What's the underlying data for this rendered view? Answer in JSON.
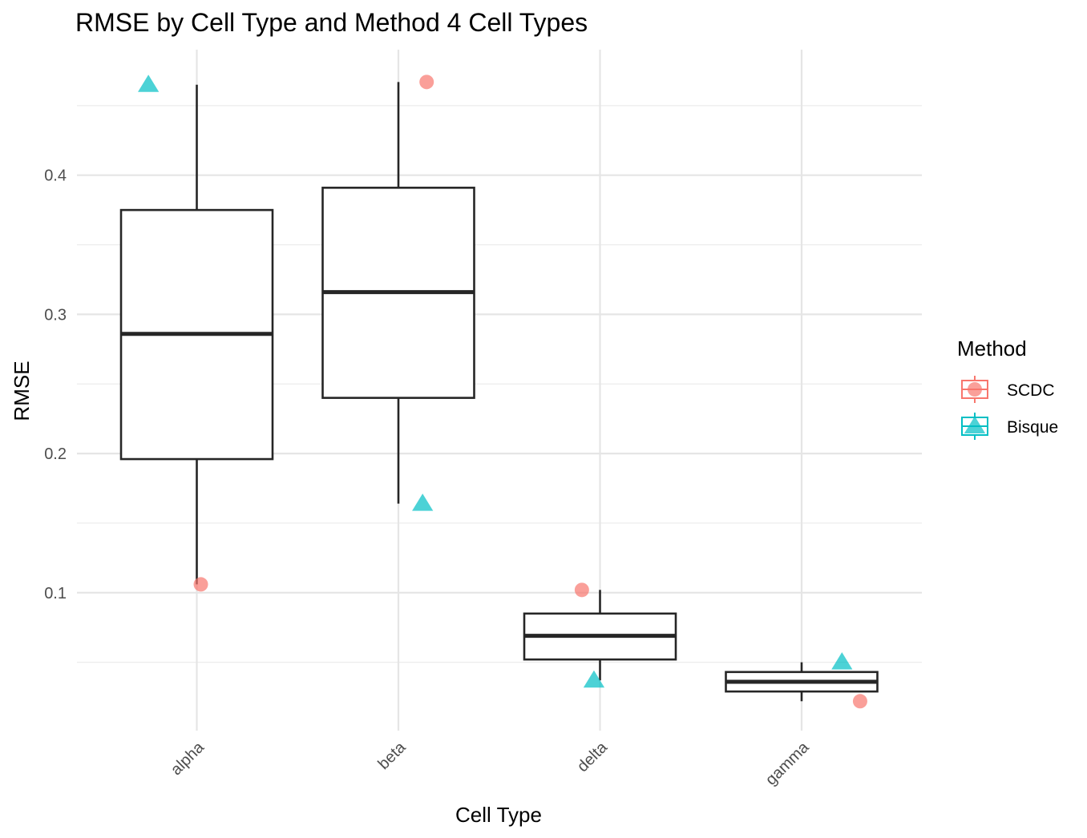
{
  "chart_data": {
    "type": "boxplot",
    "title": "RMSE by Cell Type and Method 4 Cell Types",
    "xlabel": "Cell Type",
    "ylabel": "RMSE",
    "categories": [
      "alpha",
      "beta",
      "delta",
      "gamma"
    ],
    "ylim": [
      0.0,
      0.49
    ],
    "yticks": [
      0.1,
      0.2,
      0.3,
      0.4
    ],
    "ytick_labels": [
      "0.1",
      "0.2",
      "0.3",
      "0.4"
    ],
    "grid": true,
    "legend": {
      "title": "Method",
      "placement": "right",
      "entries": [
        "SCDC",
        "Bisque"
      ]
    },
    "boxes": [
      {
        "category": "alpha",
        "whisker_low": 0.106,
        "q1": 0.196,
        "median": 0.286,
        "q3": 0.375,
        "whisker_high": 0.465
      },
      {
        "category": "beta",
        "whisker_low": 0.164,
        "q1": 0.24,
        "median": 0.316,
        "q3": 0.391,
        "whisker_high": 0.467
      },
      {
        "category": "delta",
        "whisker_low": 0.037,
        "q1": 0.052,
        "median": 0.069,
        "q3": 0.085,
        "whisker_high": 0.102
      },
      {
        "category": "gamma",
        "whisker_low": 0.022,
        "q1": 0.029,
        "median": 0.036,
        "q3": 0.043,
        "whisker_high": 0.05
      }
    ],
    "series": [
      {
        "name": "SCDC",
        "color": "#F8766D",
        "marker": "circle",
        "points": [
          {
            "category": "alpha",
            "y": 0.106,
            "jitter": 0.02
          },
          {
            "category": "beta",
            "y": 0.467,
            "jitter": 0.14
          },
          {
            "category": "delta",
            "y": 0.102,
            "jitter": -0.09
          },
          {
            "category": "gamma",
            "y": 0.022,
            "jitter": 0.29
          }
        ]
      },
      {
        "name": "Bisque",
        "color": "#00BFC4",
        "marker": "triangle",
        "points": [
          {
            "category": "alpha",
            "y": 0.465,
            "jitter": -0.24
          },
          {
            "category": "beta",
            "y": 0.164,
            "jitter": 0.12
          },
          {
            "category": "delta",
            "y": 0.037,
            "jitter": -0.03
          },
          {
            "category": "gamma",
            "y": 0.05,
            "jitter": 0.2
          }
        ]
      }
    ]
  }
}
